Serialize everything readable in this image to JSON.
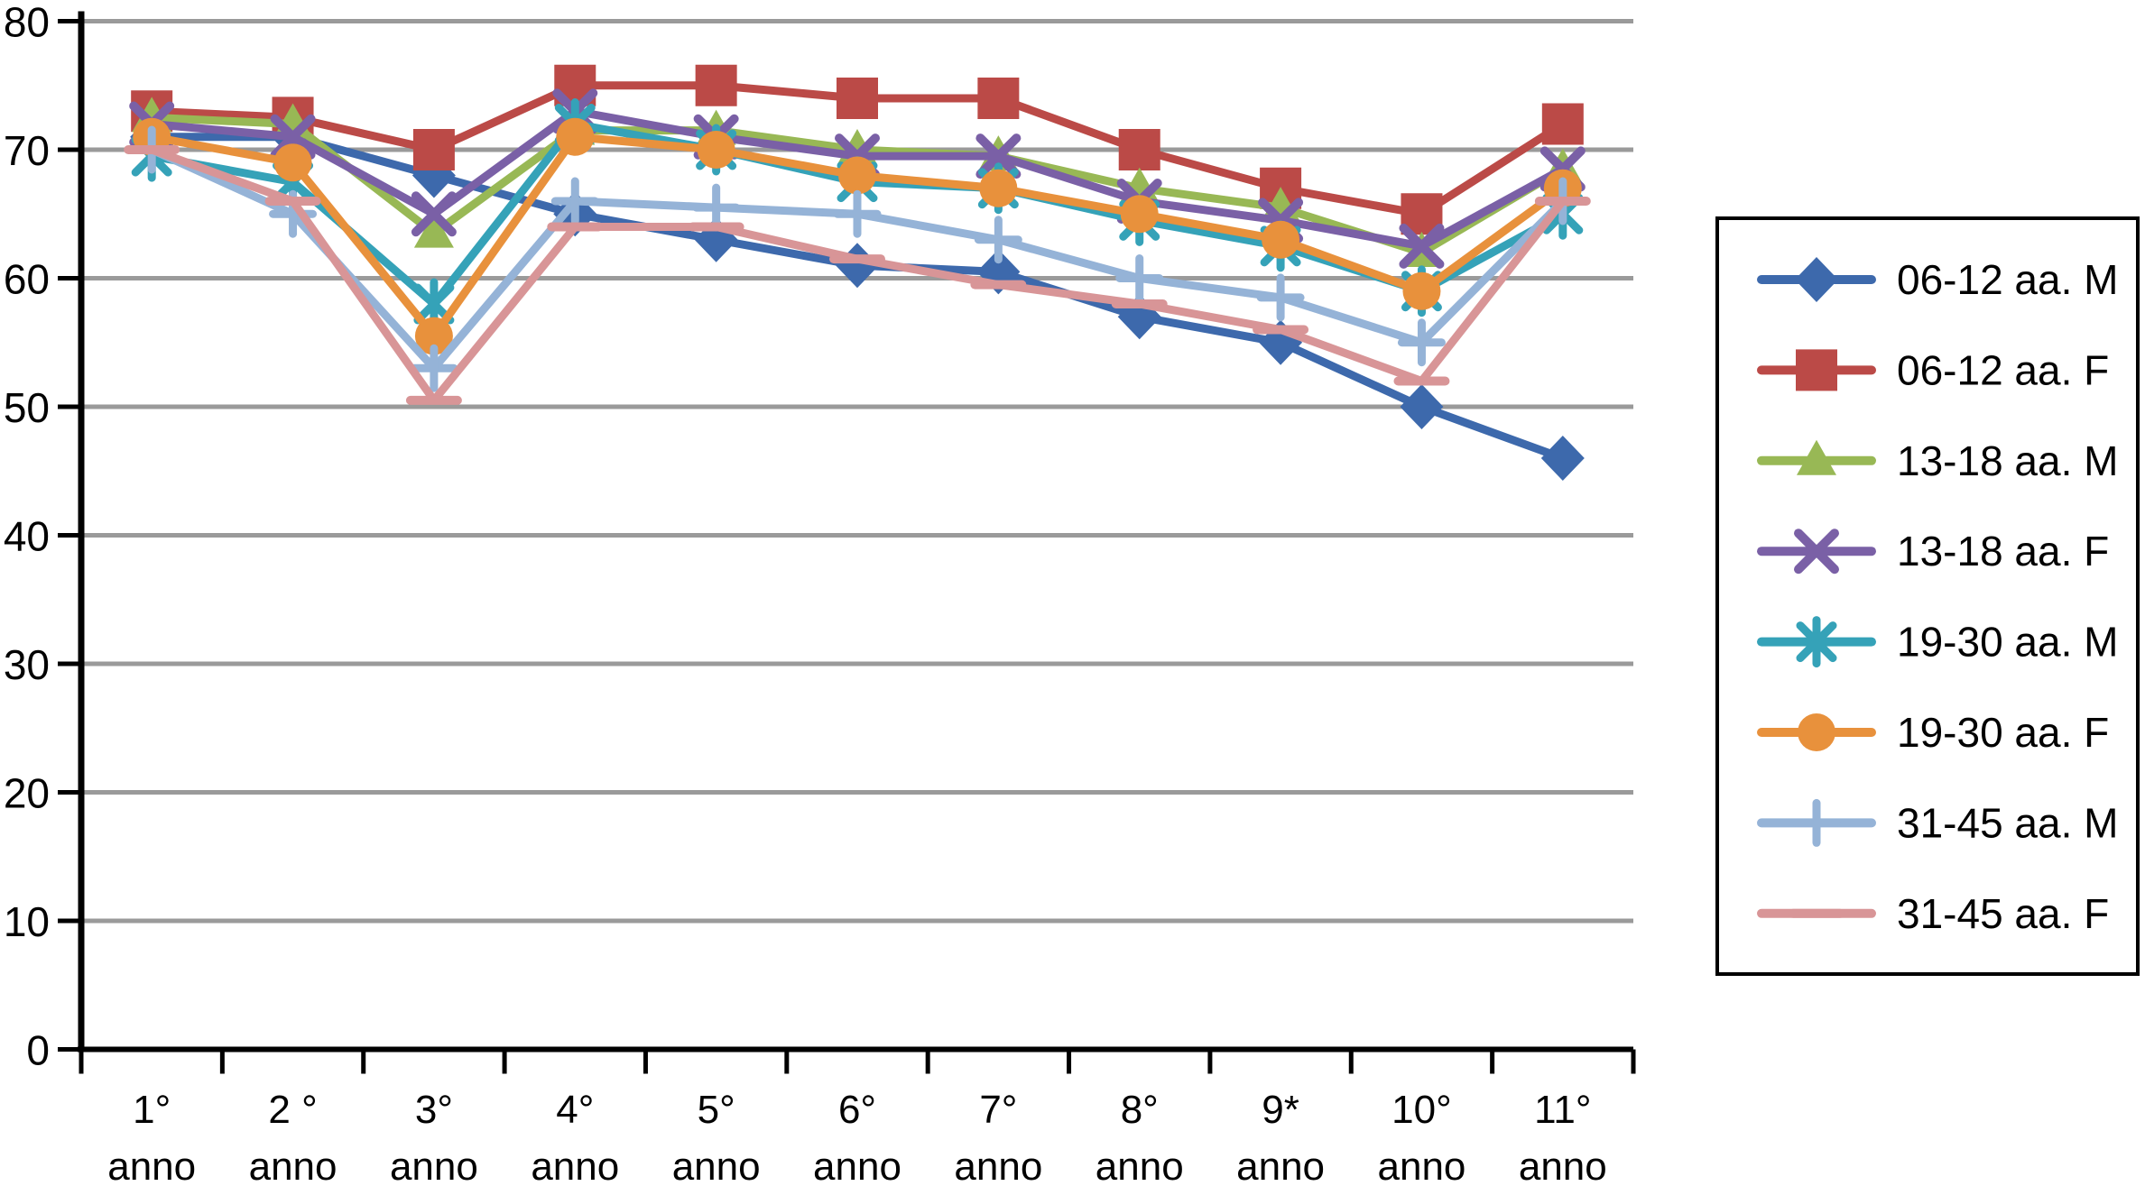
{
  "chart_data": {
    "type": "line",
    "title": "",
    "categories_line1": [
      "1°",
      "2 °",
      "3°",
      "4°",
      "5°",
      "6°",
      "7°",
      "8°",
      "9*",
      "10°",
      "11°"
    ],
    "categories_line2": "anno",
    "y_tick_labels": [
      "0",
      "10",
      "20",
      "30",
      "40",
      "50",
      "60",
      "70",
      "80"
    ],
    "y_axis": {
      "min": 0,
      "max": 80,
      "step": 10
    },
    "grid": true,
    "legend_position": "right",
    "gridline_color": "#9A9A9A",
    "axis_color": "#000000",
    "series": [
      {
        "name": "06-12 aa. M",
        "marker": "diamond",
        "color": "#3D69AC",
        "values": [
          71,
          71,
          68,
          65,
          63,
          61,
          60.5,
          57,
          55,
          50,
          46
        ]
      },
      {
        "name": "06-12 aa. F",
        "marker": "square",
        "color": "#BB4A47",
        "values": [
          73,
          72.5,
          70,
          75,
          75,
          74,
          74,
          70,
          67,
          65,
          72
        ]
      },
      {
        "name": "13-18 aa. M",
        "marker": "triangle",
        "color": "#98B855",
        "values": [
          72.5,
          72,
          63.5,
          71.5,
          71.5,
          70,
          69.5,
          67,
          65.5,
          62,
          68.5
        ]
      },
      {
        "name": "13-18 aa. F",
        "marker": "x",
        "color": "#7A60A6",
        "values": [
          72,
          71,
          65,
          73,
          71,
          69.5,
          69.5,
          66,
          64.5,
          62.5,
          68.5
        ]
      },
      {
        "name": "19-30 aa. M",
        "marker": "asterisk",
        "color": "#35A2B8",
        "values": [
          69.5,
          67.5,
          58,
          72,
          70,
          67.5,
          67,
          64.5,
          62.5,
          59,
          65
        ]
      },
      {
        "name": "19-30 aa. F",
        "marker": "circle",
        "color": "#E8913C",
        "values": [
          71,
          69,
          55.5,
          71,
          70,
          68,
          67,
          65,
          63,
          59,
          67
        ]
      },
      {
        "name": "31-45 aa. M",
        "marker": "plus",
        "color": "#95B3D7",
        "values": [
          70,
          65,
          53,
          66,
          65.5,
          65,
          63,
          60,
          58.5,
          55,
          66
        ]
      },
      {
        "name": "31-45 aa. F",
        "marker": "dash",
        "color": "#D89597",
        "values": [
          70,
          66,
          50.5,
          64,
          64,
          61.5,
          59.5,
          58,
          56,
          52,
          66
        ]
      }
    ]
  }
}
